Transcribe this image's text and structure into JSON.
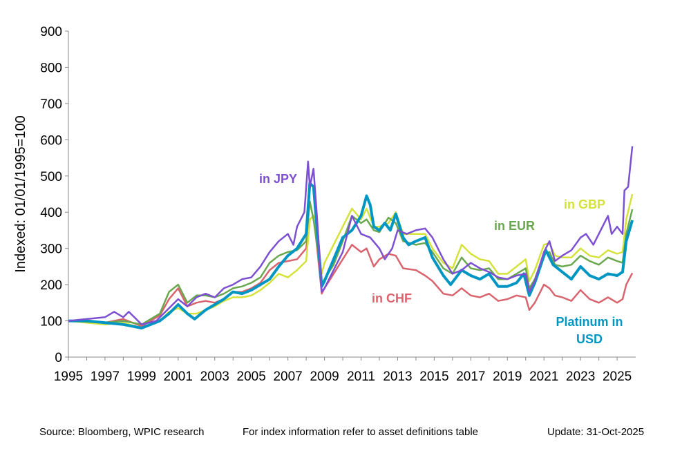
{
  "chart_data": {
    "type": "line",
    "title": "",
    "xlabel": "",
    "ylabel": "Indexed: 01/01/1995=100",
    "xlim": [
      1995,
      2025.83
    ],
    "ylim": [
      0,
      900
    ],
    "yticks": [
      0,
      100,
      200,
      300,
      400,
      500,
      600,
      700,
      800,
      900
    ],
    "xticks": [
      1995,
      1997,
      1999,
      2001,
      2003,
      2005,
      2007,
      2009,
      2011,
      2013,
      2015,
      2017,
      2019,
      2021,
      2023,
      2025
    ],
    "grid": false,
    "legend": "inline labels",
    "series": [
      {
        "name": "in CHF",
        "color": "#d9646e",
        "x": [
          1995,
          1997,
          1998,
          1999,
          2000,
          2000.5,
          2001,
          2001.5,
          2002,
          2002.5,
          2003,
          2003.5,
          2004,
          2004.5,
          2005,
          2005.5,
          2006,
          2006.5,
          2007,
          2007.5,
          2008,
          2008.2,
          2008.4,
          2008.6,
          2008.85,
          2009,
          2009.5,
          2010,
          2010.5,
          2011,
          2011.3,
          2011.7,
          2012,
          2012.5,
          2012.9,
          2013.3,
          2014,
          2014.5,
          2014.9,
          2015.5,
          2016,
          2016.5,
          2017,
          2017.5,
          2018,
          2018.5,
          2019,
          2019.5,
          2020,
          2020.2,
          2020.5,
          2021,
          2021.3,
          2021.6,
          2022,
          2022.5,
          2023,
          2023.5,
          2024,
          2024.5,
          2025,
          2025.3,
          2025.5,
          2025.83
        ],
        "y": [
          100,
          95,
          105,
          85,
          115,
          160,
          190,
          140,
          150,
          155,
          150,
          160,
          180,
          180,
          190,
          205,
          240,
          260,
          265,
          270,
          300,
          380,
          390,
          300,
          175,
          190,
          230,
          270,
          310,
          290,
          300,
          250,
          270,
          285,
          280,
          245,
          240,
          225,
          210,
          175,
          170,
          190,
          170,
          165,
          175,
          155,
          160,
          170,
          165,
          130,
          150,
          200,
          190,
          170,
          165,
          155,
          185,
          160,
          150,
          165,
          150,
          160,
          200,
          232
        ]
      },
      {
        "name": "in GBP",
        "color": "#d4e23a",
        "x": [
          1995,
          1997,
          1998,
          1999,
          2000,
          2000.5,
          2001,
          2001.5,
          2002,
          2002.5,
          2003,
          2003.5,
          2004,
          2004.5,
          2005,
          2005.5,
          2006,
          2006.5,
          2007,
          2007.5,
          2008,
          2008.2,
          2008.4,
          2008.6,
          2008.85,
          2009,
          2009.5,
          2010,
          2010.5,
          2011,
          2011.3,
          2011.7,
          2012,
          2012.5,
          2012.9,
          2013.3,
          2014,
          2014.5,
          2014.9,
          2015.5,
          2016,
          2016.5,
          2017,
          2017.5,
          2018,
          2018.5,
          2019,
          2019.5,
          2020,
          2020.2,
          2020.5,
          2021,
          2021.3,
          2021.6,
          2022,
          2022.5,
          2023,
          2023.5,
          2024,
          2024.5,
          2025,
          2025.3,
          2025.5,
          2025.83
        ],
        "y": [
          100,
          90,
          95,
          80,
          100,
          125,
          135,
          120,
          120,
          130,
          140,
          155,
          165,
          165,
          170,
          185,
          205,
          230,
          220,
          240,
          265,
          380,
          390,
          320,
          230,
          260,
          310,
          360,
          410,
          380,
          410,
          360,
          360,
          370,
          400,
          340,
          340,
          340,
          300,
          260,
          245,
          310,
          285,
          270,
          265,
          230,
          230,
          250,
          270,
          210,
          240,
          310,
          315,
          280,
          275,
          275,
          300,
          280,
          275,
          295,
          285,
          290,
          380,
          450
        ]
      },
      {
        "name": "in EUR",
        "color": "#6aa84f",
        "x": [
          1995,
          1997,
          1998,
          1999,
          2000,
          2000.5,
          2001,
          2001.5,
          2002,
          2002.5,
          2003,
          2003.5,
          2004,
          2004.5,
          2005,
          2005.5,
          2006,
          2006.5,
          2007,
          2007.5,
          2008,
          2008.2,
          2008.4,
          2008.6,
          2008.85,
          2009,
          2009.5,
          2010,
          2010.5,
          2011,
          2011.3,
          2011.7,
          2012,
          2012.5,
          2012.9,
          2013.3,
          2014,
          2014.5,
          2014.9,
          2015.5,
          2016,
          2016.5,
          2017,
          2017.5,
          2018,
          2018.5,
          2019,
          2019.5,
          2020,
          2020.2,
          2020.5,
          2021,
          2021.3,
          2021.6,
          2022,
          2022.5,
          2023,
          2023.5,
          2024,
          2024.5,
          2025,
          2025.3,
          2025.5,
          2025.83
        ],
        "y": [
          100,
          95,
          100,
          90,
          120,
          180,
          200,
          150,
          170,
          170,
          165,
          175,
          190,
          195,
          205,
          220,
          260,
          280,
          290,
          295,
          320,
          430,
          380,
          310,
          200,
          215,
          255,
          320,
          390,
          370,
          380,
          350,
          345,
          385,
          370,
          320,
          310,
          315,
          290,
          245,
          230,
          275,
          245,
          240,
          245,
          215,
          215,
          230,
          245,
          190,
          215,
          285,
          290,
          255,
          250,
          255,
          280,
          265,
          255,
          275,
          265,
          260,
          340,
          408
        ]
      },
      {
        "name": "Platinum in USD",
        "color": "#0096c4",
        "x": [
          1995,
          1996,
          1997,
          1998,
          1999,
          2000,
          2000.5,
          2001,
          2001.5,
          2001.9,
          2002.5,
          2003,
          2003.5,
          2004,
          2004.5,
          2005,
          2005.5,
          2006,
          2006.5,
          2007,
          2007.5,
          2008,
          2008.2,
          2008.4,
          2008.6,
          2008.85,
          2009,
          2009.5,
          2010,
          2010.5,
          2011,
          2011.3,
          2011.5,
          2011.7,
          2012,
          2012.3,
          2012.6,
          2012.9,
          2013.3,
          2013.6,
          2014,
          2014.5,
          2014.9,
          2015.5,
          2015.9,
          2016.5,
          2017,
          2017.5,
          2018,
          2018.5,
          2019,
          2019.5,
          2019.9,
          2020.2,
          2020.5,
          2021.1,
          2021.5,
          2022,
          2022.5,
          2023,
          2023.5,
          2024,
          2024.5,
          2025,
          2025.3,
          2025.5,
          2025.83
        ],
        "y": [
          100,
          100,
          95,
          90,
          80,
          100,
          120,
          145,
          120,
          105,
          130,
          145,
          160,
          180,
          175,
          185,
          200,
          215,
          250,
          280,
          300,
          340,
          480,
          470,
          350,
          195,
          210,
          270,
          330,
          350,
          390,
          445,
          420,
          360,
          350,
          370,
          350,
          395,
          330,
          310,
          320,
          330,
          275,
          225,
          200,
          240,
          225,
          215,
          230,
          195,
          195,
          205,
          230,
          170,
          205,
          295,
          255,
          235,
          215,
          250,
          225,
          215,
          230,
          225,
          235,
          320,
          378
        ]
      },
      {
        "name": "in JPY",
        "color": "#7d4fd1",
        "x": [
          1995,
          1996,
          1997,
          1997.5,
          1998,
          1998.3,
          1999,
          1999.8,
          2000.5,
          2001,
          2001.5,
          2002,
          2002.5,
          2003,
          2003.5,
          2004,
          2004.5,
          2005,
          2005.5,
          2006,
          2006.5,
          2007,
          2007.3,
          2007.5,
          2007.9,
          2008.1,
          2008.2,
          2008.4,
          2008.6,
          2008.85,
          2009,
          2009.5,
          2010,
          2010.5,
          2011,
          2011.5,
          2012,
          2012.3,
          2012.7,
          2013,
          2013.5,
          2014,
          2014.5,
          2014.9,
          2015.5,
          2016,
          2016.5,
          2017,
          2017.5,
          2018,
          2018.5,
          2019,
          2019.5,
          2020,
          2020.2,
          2020.5,
          2021,
          2021.3,
          2021.6,
          2022,
          2022.5,
          2023,
          2023.3,
          2023.7,
          2024,
          2024.5,
          2024.7,
          2025,
          2025.3,
          2025.4,
          2025.6,
          2025.83
        ],
        "y": [
          100,
          105,
          110,
          125,
          110,
          125,
          90,
          100,
          135,
          160,
          140,
          165,
          175,
          165,
          190,
          200,
          215,
          220,
          250,
          290,
          320,
          340,
          310,
          360,
          400,
          540,
          470,
          520,
          380,
          180,
          190,
          240,
          290,
          390,
          340,
          330,
          300,
          270,
          300,
          350,
          340,
          350,
          355,
          330,
          270,
          230,
          240,
          260,
          245,
          235,
          220,
          215,
          225,
          230,
          180,
          210,
          290,
          320,
          265,
          280,
          295,
          330,
          340,
          310,
          340,
          390,
          340,
          360,
          340,
          460,
          470,
          582
        ]
      }
    ],
    "annotations": [
      "in JPY",
      "in GBP",
      "in EUR",
      "in CHF",
      "Platinum in",
      "USD"
    ]
  },
  "footer": {
    "source": "Source: Bloomberg, WPIC research",
    "note": "For index information refer to asset definitions table",
    "update": "Update: 31-Oct-2025"
  }
}
